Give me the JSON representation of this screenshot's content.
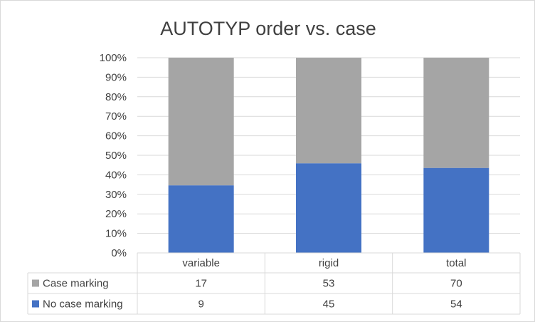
{
  "chart_data": {
    "type": "bar",
    "stacking": "percent",
    "title": "AUTOTYP order vs. case",
    "categories": [
      "variable",
      "rigid",
      "total"
    ],
    "series": [
      {
        "name": "No case marking",
        "values": [
          9,
          45,
          54
        ],
        "color": "#4472c4"
      },
      {
        "name": "Case marking",
        "values": [
          17,
          53,
          70
        ],
        "color": "#a5a5a5"
      }
    ],
    "y_ticks": [
      "0%",
      "10%",
      "20%",
      "30%",
      "40%",
      "50%",
      "60%",
      "70%",
      "80%",
      "90%",
      "100%"
    ],
    "ylim": [
      0,
      100
    ],
    "grid": true,
    "legend": "data-table-below",
    "data_table": {
      "rows": [
        {
          "label": "Case marking",
          "values": [
            17,
            53,
            70
          ],
          "color": "#a5a5a5"
        },
        {
          "label": "No case marking",
          "values": [
            9,
            45,
            54
          ],
          "color": "#4472c4"
        }
      ]
    }
  }
}
